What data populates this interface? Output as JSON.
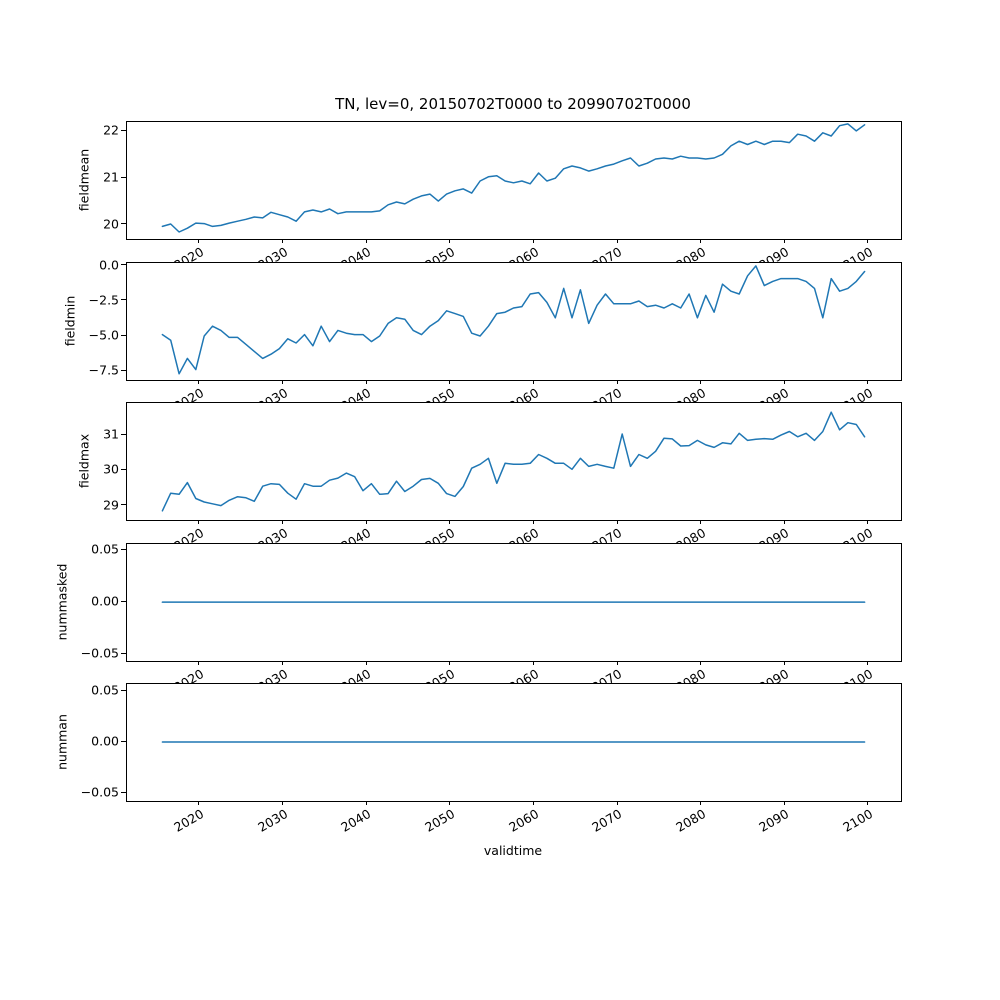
{
  "chart_data": {
    "type": "line",
    "title": "TN, lev=0, 20150702T0000 to 20990702T0000",
    "xlabel": "validtime",
    "line_color": "#1f77b4",
    "grid": false,
    "legend": "none",
    "x": [
      2015,
      2016,
      2017,
      2018,
      2019,
      2020,
      2021,
      2022,
      2023,
      2024,
      2025,
      2026,
      2027,
      2028,
      2029,
      2030,
      2031,
      2032,
      2033,
      2034,
      2035,
      2036,
      2037,
      2038,
      2039,
      2040,
      2041,
      2042,
      2043,
      2044,
      2045,
      2046,
      2047,
      2048,
      2049,
      2050,
      2051,
      2052,
      2053,
      2054,
      2055,
      2056,
      2057,
      2058,
      2059,
      2060,
      2061,
      2062,
      2063,
      2064,
      2065,
      2066,
      2067,
      2068,
      2069,
      2070,
      2071,
      2072,
      2073,
      2074,
      2075,
      2076,
      2077,
      2078,
      2079,
      2080,
      2081,
      2082,
      2083,
      2084,
      2085,
      2086,
      2087,
      2088,
      2089,
      2090,
      2091,
      2092,
      2093,
      2094,
      2095,
      2096,
      2097,
      2098,
      2099
    ],
    "xlim": [
      2011.27,
      2103.85
    ],
    "xticks": [
      2020,
      2030,
      2040,
      2050,
      2060,
      2070,
      2080,
      2090,
      2100
    ],
    "xtick_labels": [
      "2020",
      "2030",
      "2040",
      "2050",
      "2060",
      "2070",
      "2080",
      "2090",
      "2100"
    ],
    "subplots": [
      {
        "name": "fieldmean",
        "ylabel": "fieldmean",
        "ylim": [
          19.7,
          22.2
        ],
        "yticks": [
          22,
          21,
          20
        ],
        "ytick_labels": [
          "22",
          "21",
          "20"
        ],
        "values": [
          19.97,
          20.02,
          19.85,
          19.93,
          20.04,
          20.03,
          19.97,
          19.99,
          20.04,
          20.08,
          20.12,
          20.17,
          20.15,
          20.27,
          20.22,
          20.17,
          20.08,
          20.28,
          20.32,
          20.28,
          20.34,
          20.24,
          20.28,
          20.28,
          20.28,
          20.28,
          20.3,
          20.43,
          20.49,
          20.45,
          20.55,
          20.62,
          20.66,
          20.51,
          20.66,
          20.73,
          20.77,
          20.68,
          20.94,
          21.03,
          21.05,
          20.94,
          20.9,
          20.94,
          20.88,
          21.11,
          20.94,
          21.0,
          21.2,
          21.26,
          21.22,
          21.15,
          21.2,
          21.26,
          21.3,
          21.37,
          21.43,
          21.26,
          21.32,
          21.41,
          21.43,
          21.41,
          21.47,
          21.43,
          21.43,
          21.41,
          21.43,
          21.51,
          21.69,
          21.79,
          21.72,
          21.79,
          21.72,
          21.79,
          21.79,
          21.76,
          21.94,
          21.9,
          21.79,
          21.97,
          21.9,
          22.12,
          22.16,
          22.01,
          22.14
        ]
      },
      {
        "name": "fieldmin",
        "ylabel": "fieldmin",
        "ylim": [
          -8.14,
          0.21
        ],
        "yticks": [
          0.0,
          -2.5,
          -5.0,
          -7.5
        ],
        "ytick_labels": [
          "0.0",
          "−2.5",
          "−5.0",
          "−7.5"
        ],
        "values": [
          -4.9,
          -5.3,
          -7.7,
          -6.6,
          -7.4,
          -5.0,
          -4.3,
          -4.6,
          -5.1,
          -5.1,
          -5.6,
          -6.1,
          -6.6,
          -6.3,
          -5.9,
          -5.2,
          -5.5,
          -4.9,
          -5.7,
          -4.3,
          -5.4,
          -4.6,
          -4.8,
          -4.9,
          -4.9,
          -5.4,
          -5.0,
          -4.1,
          -3.7,
          -3.8,
          -4.6,
          -4.9,
          -4.3,
          -3.9,
          -3.2,
          -3.4,
          -3.6,
          -4.8,
          -5.0,
          -4.3,
          -3.4,
          -3.3,
          -3.0,
          -2.9,
          -2.0,
          -1.9,
          -2.6,
          -3.7,
          -1.6,
          -3.7,
          -1.7,
          -4.1,
          -2.8,
          -2.0,
          -2.7,
          -2.7,
          -2.7,
          -2.5,
          -2.9,
          -2.8,
          -3.0,
          -2.7,
          -3.0,
          -2.0,
          -3.7,
          -2.1,
          -3.3,
          -1.3,
          -1.8,
          -2.0,
          -0.7,
          0.0,
          -1.4,
          -1.1,
          -0.9,
          -0.9,
          -0.9,
          -1.1,
          -1.6,
          -3.7,
          -0.9,
          -1.8,
          -1.6,
          -1.1,
          -0.4
        ]
      },
      {
        "name": "fieldmax",
        "ylabel": "fieldmax",
        "ylim": [
          28.59,
          31.91
        ],
        "yticks": [
          31,
          30,
          29
        ],
        "ytick_labels": [
          "31",
          "30",
          "29"
        ],
        "values": [
          28.85,
          29.35,
          29.32,
          29.65,
          29.2,
          29.1,
          29.05,
          29.0,
          29.15,
          29.25,
          29.22,
          29.12,
          29.55,
          29.62,
          29.6,
          29.35,
          29.18,
          29.62,
          29.55,
          29.55,
          29.72,
          29.78,
          29.92,
          29.82,
          29.42,
          29.62,
          29.32,
          29.34,
          29.69,
          29.4,
          29.55,
          29.74,
          29.77,
          29.63,
          29.34,
          29.26,
          29.54,
          30.06,
          30.17,
          30.34,
          29.63,
          30.2,
          30.17,
          30.17,
          30.2,
          30.45,
          30.34,
          30.2,
          30.2,
          30.03,
          30.34,
          30.11,
          30.17,
          30.11,
          30.06,
          31.03,
          30.11,
          30.45,
          30.34,
          30.54,
          30.91,
          30.89,
          30.69,
          30.7,
          30.85,
          30.72,
          30.65,
          30.78,
          30.75,
          31.05,
          30.85,
          30.88,
          30.9,
          30.88,
          31.0,
          31.1,
          30.95,
          31.05,
          30.85,
          31.1,
          31.65,
          31.15,
          31.35,
          31.3,
          30.95
        ]
      },
      {
        "name": "nummasked",
        "ylabel": "nummasked",
        "ylim": [
          -0.0565,
          0.0558
        ],
        "yticks": [
          0.05,
          0.0,
          -0.05
        ],
        "ytick_labels": [
          "0.05",
          "0.00",
          "−0.05"
        ],
        "values": [
          0,
          0,
          0,
          0,
          0,
          0,
          0,
          0,
          0,
          0,
          0,
          0,
          0,
          0,
          0,
          0,
          0,
          0,
          0,
          0,
          0,
          0,
          0,
          0,
          0,
          0,
          0,
          0,
          0,
          0,
          0,
          0,
          0,
          0,
          0,
          0,
          0,
          0,
          0,
          0,
          0,
          0,
          0,
          0,
          0,
          0,
          0,
          0,
          0,
          0,
          0,
          0,
          0,
          0,
          0,
          0,
          0,
          0,
          0,
          0,
          0,
          0,
          0,
          0,
          0,
          0,
          0,
          0,
          0,
          0,
          0,
          0,
          0,
          0,
          0,
          0,
          0,
          0,
          0,
          0,
          0,
          0,
          0,
          0,
          0
        ]
      },
      {
        "name": "numman",
        "ylabel": "numman",
        "ylim": [
          -0.0578,
          0.0569
        ],
        "yticks": [
          0.05,
          0.0,
          -0.05
        ],
        "ytick_labels": [
          "0.05",
          "0.00",
          "−0.05"
        ],
        "values": [
          0,
          0,
          0,
          0,
          0,
          0,
          0,
          0,
          0,
          0,
          0,
          0,
          0,
          0,
          0,
          0,
          0,
          0,
          0,
          0,
          0,
          0,
          0,
          0,
          0,
          0,
          0,
          0,
          0,
          0,
          0,
          0,
          0,
          0,
          0,
          0,
          0,
          0,
          0,
          0,
          0,
          0,
          0,
          0,
          0,
          0,
          0,
          0,
          0,
          0,
          0,
          0,
          0,
          0,
          0,
          0,
          0,
          0,
          0,
          0,
          0,
          0,
          0,
          0,
          0,
          0,
          0,
          0,
          0,
          0,
          0,
          0,
          0,
          0,
          0,
          0,
          0,
          0,
          0,
          0,
          0,
          0,
          0,
          0,
          0
        ]
      }
    ]
  }
}
